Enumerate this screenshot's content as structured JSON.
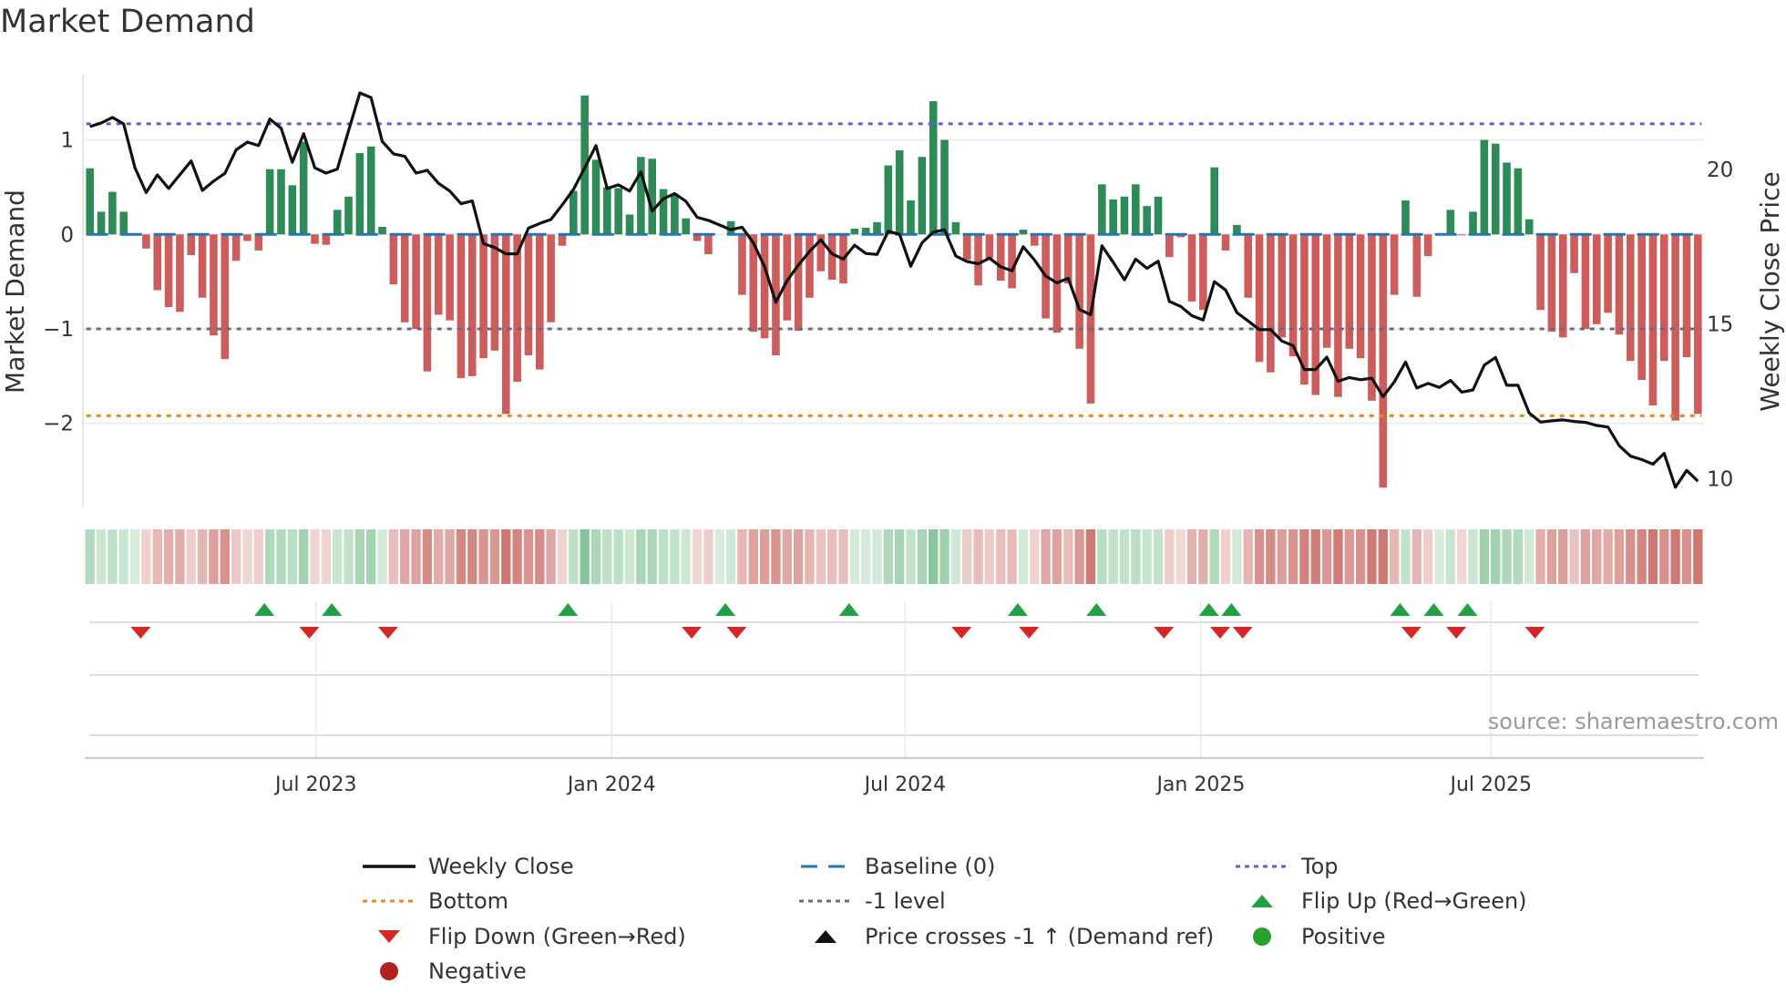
{
  "title": "Market Demand",
  "source": "source: sharemaestro.com",
  "colors": {
    "positive_bar": "#2e8b57",
    "negative_bar": "#cd5c5c",
    "baseline": "#1f77b4",
    "top": "#6a5acd",
    "bottom": "#e8891c",
    "minus_one": "#6b6b78",
    "price": "#111111",
    "flip_up": "#22a045",
    "flip_down": "#d62728",
    "positive_dot": "#2ca02c",
    "negative_dot": "#b22222"
  },
  "chart_data": {
    "type": "bar",
    "title": "Market Demand",
    "ylabel": "Market Demand",
    "y2label": "Weekly Close Price",
    "ylim": [
      -2.89,
      1.69
    ],
    "y2lim": [
      9.07,
      23.06
    ],
    "yticks": [
      {
        "v": 1,
        "label": "1"
      },
      {
        "v": 0,
        "label": "0"
      },
      {
        "v": -1,
        "label": "−1"
      },
      {
        "v": -2,
        "label": "−2"
      }
    ],
    "y2ticks": [
      {
        "v": 20,
        "label": "20"
      },
      {
        "v": 15,
        "label": "15"
      },
      {
        "v": 10,
        "label": "10"
      }
    ],
    "xticks": [
      {
        "week": 20.1,
        "label": "Jul 2023"
      },
      {
        "week": 46.4,
        "label": "Jan 2024"
      },
      {
        "week": 72.5,
        "label": "Jul 2024"
      },
      {
        "week": 98.8,
        "label": "Jan 2025"
      },
      {
        "week": 124.6,
        "label": "Jul 2025"
      }
    ],
    "reference_lines": {
      "top": 1.17,
      "baseline": 0,
      "minus_one": -1,
      "bottom": -1.92
    },
    "demand": [
      0.7,
      0.24,
      0.45,
      0.24,
      0.01,
      -0.15,
      -0.59,
      -0.77,
      -0.82,
      -0.22,
      -0.67,
      -1.07,
      -1.32,
      -0.28,
      -0.07,
      -0.17,
      0.69,
      0.69,
      0.52,
      0.98,
      -0.1,
      -0.11,
      0.26,
      0.4,
      0.86,
      0.93,
      0.08,
      -0.53,
      -0.93,
      -1.0,
      -1.45,
      -0.85,
      -0.91,
      -1.52,
      -1.5,
      -1.31,
      -1.23,
      -1.9,
      -1.56,
      -1.28,
      -1.43,
      -0.93,
      -0.12,
      0.46,
      1.47,
      0.79,
      0.5,
      0.49,
      0.21,
      0.82,
      0.8,
      0.48,
      0.42,
      0.17,
      -0.07,
      -0.21,
      0,
      0.14,
      -0.64,
      -1.03,
      -1.1,
      -1.28,
      -0.91,
      -1.02,
      -0.67,
      -0.39,
      -0.48,
      -0.52,
      0.06,
      0.07,
      0.13,
      0.73,
      0.89,
      0.36,
      0.82,
      1.41,
      1.0,
      0.13,
      -0.27,
      -0.54,
      -0.25,
      -0.49,
      -0.57,
      0.05,
      -0.12,
      -0.89,
      -1.04,
      -0.52,
      -1.21,
      -1.79,
      0.53,
      0.37,
      0.4,
      0.53,
      0.3,
      0.4,
      -0.24,
      -0.03,
      -0.71,
      -0.8,
      0.71,
      -0.17,
      0.1,
      -0.67,
      -1.35,
      -1.46,
      -1.09,
      -1.29,
      -1.59,
      -1.7,
      -1.2,
      -1.72,
      -1.21,
      -1.31,
      -1.76,
      -2.68,
      -0.64,
      0.36,
      -0.66,
      -0.23,
      0.01,
      0.26,
      -0.01,
      0.24,
      1.0,
      0.96,
      0.76,
      0.7,
      0.16,
      -0.8,
      -1.03,
      -1.09,
      -0.41,
      -1.0,
      -0.95,
      -0.83,
      -1.06,
      -1.34,
      -1.54,
      -1.81,
      -1.34,
      -1.97,
      -1.3,
      -1.9
    ],
    "weekly_close": [
      21.38,
      21.5,
      21.68,
      21.47,
      20.05,
      19.25,
      19.82,
      19.38,
      19.83,
      20.27,
      19.32,
      19.62,
      19.87,
      20.63,
      20.88,
      20.77,
      21.63,
      21.33,
      20.23,
      21.15,
      20.05,
      19.88,
      20.01,
      21.25,
      22.47,
      22.32,
      20.9,
      20.5,
      20.42,
      19.88,
      19.97,
      19.55,
      19.3,
      18.89,
      18.98,
      17.6,
      17.47,
      17.27,
      17.27,
      18.1,
      18.25,
      18.38,
      18.85,
      19.35,
      20.05,
      20.77,
      19.38,
      19.5,
      19.3,
      19.92,
      18.65,
      19.05,
      19.22,
      18.97,
      18.45,
      18.35,
      18.2,
      18.05,
      18.13,
      17.62,
      16.85,
      15.7,
      16.4,
      16.9,
      17.35,
      17.72,
      17.27,
      17.1,
      17.55,
      17.28,
      17.25,
      18.0,
      17.9,
      16.87,
      17.63,
      17.97,
      18.05,
      17.2,
      17.02,
      16.95,
      17.13,
      16.85,
      16.72,
      17.5,
      17.07,
      16.55,
      16.33,
      16.48,
      15.47,
      15.3,
      17.53,
      17.0,
      16.43,
      17.1,
      16.8,
      17.03,
      15.73,
      15.57,
      15.27,
      15.13,
      16.37,
      16.1,
      15.37,
      15.1,
      14.82,
      14.82,
      14.45,
      14.3,
      13.53,
      13.53,
      13.93,
      13.15,
      13.27,
      13.2,
      13.25,
      12.65,
      13.13,
      13.77,
      12.93,
      13.08,
      12.95,
      13.18,
      12.8,
      12.87,
      13.67,
      13.92,
      13.02,
      13.02,
      12.12,
      11.83,
      11.87,
      11.9,
      11.85,
      11.82,
      11.72,
      11.67,
      11.07,
      10.73,
      10.62,
      10.47,
      10.82,
      9.72,
      10.27,
      9.92
    ]
  },
  "legend": [
    {
      "label": "Weekly Close",
      "kind": "line-solid",
      "color_key": "price"
    },
    {
      "label": "Baseline (0)",
      "kind": "line-dashed",
      "color_key": "baseline"
    },
    {
      "label": "Top",
      "kind": "line-dotted",
      "color_key": "top"
    },
    {
      "label": "Bottom",
      "kind": "line-dotted",
      "color_key": "bottom"
    },
    {
      "label": "-1 level",
      "kind": "line-dotted",
      "color_key": "minus_one"
    },
    {
      "label": "Flip Up (Red→Green)",
      "kind": "triangle-up",
      "color_key": "flip_up"
    },
    {
      "label": "Flip Down (Green→Red)",
      "kind": "triangle-down",
      "color_key": "flip_down"
    },
    {
      "label": "Price crosses -1 ↑ (Demand ref)",
      "kind": "triangle-up",
      "color_key": "price"
    },
    {
      "label": "Positive",
      "kind": "dot",
      "color_key": "positive_dot"
    },
    {
      "label": "Negative",
      "kind": "dot",
      "color_key": "negative_dot"
    }
  ]
}
